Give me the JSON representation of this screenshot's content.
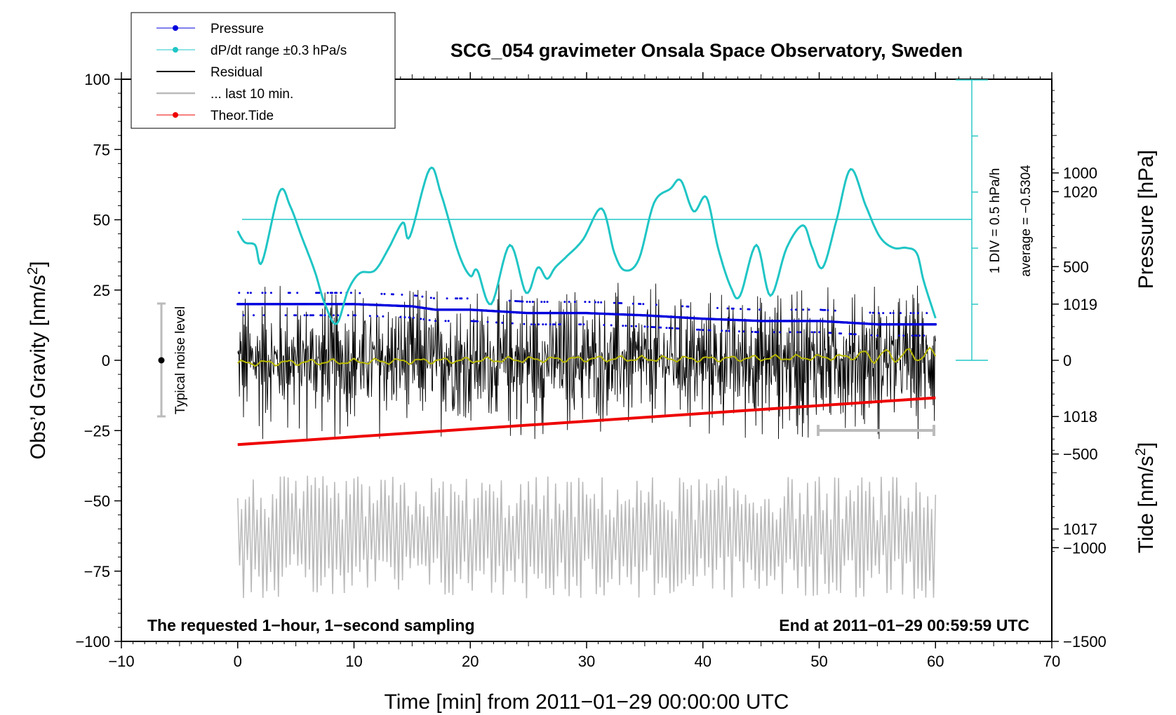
{
  "chart_data": {
    "type": "line",
    "title": "SCG_054 gravimeter Onsala Space Observatory, Sweden",
    "xlabel": "Time [min] from 2011−01−29 00:00:00 UTC",
    "xlim": [
      -10,
      70
    ],
    "x_ticks": [
      "−10",
      "0",
      "10",
      "20",
      "30",
      "40",
      "50",
      "60",
      "70"
    ],
    "y_left": {
      "label": "Obs’d Gravity [nm/s",
      "label_sup": "2",
      "label_end": "]",
      "lim": [
        -100,
        100
      ],
      "ticks": [
        "−100",
        "−75",
        "−50",
        "−25",
        "0",
        "25",
        "50",
        "75",
        "100"
      ]
    },
    "y_right_pressure": {
      "label": "Pressure [hPa]",
      "lim": [
        1016.0,
        1021.0
      ],
      "ticks": [
        "1017",
        "1018",
        "1019",
        "1020"
      ]
    },
    "y_right_tide": {
      "label": "Tide [nm/s",
      "label_sup": "2",
      "label_end": "]",
      "lim": [
        -1500,
        1500
      ],
      "ticks": [
        "−1500",
        "−1000",
        "−500",
        "0",
        "500",
        "1000"
      ]
    },
    "dpdt_axis": {
      "div_label": "1 DIV = 0.5 hPa/h",
      "average_label": "average = −0.5304"
    },
    "legend": [
      {
        "label": "Pressure",
        "color": "#0000dd"
      },
      {
        "label": "dP/dt range ±0.3 hPa/s",
        "color": "#20c5c5"
      },
      {
        "label": "Residual",
        "color": "#000000"
      },
      {
        "label": "... last 10 min.",
        "color": "#bbbbbb"
      },
      {
        "label": "Theor.Tide",
        "color": "#ee0000"
      }
    ],
    "noise_bar": {
      "label": "Typical noise level",
      "x": -7,
      "low": -20,
      "high": 20
    },
    "last10_bar": {
      "x_start": 50,
      "x_end": 60,
      "y": -25
    },
    "footnote_left": "The requested 1−hour, 1−second sampling",
    "footnote_right": "End at 2011−01−29 00:59:59 UTC",
    "series": [
      {
        "name": "Pressure",
        "axis": "pressure",
        "color": "#0000dd",
        "x": [
          0,
          5,
          10,
          15,
          17,
          20,
          25,
          30,
          35,
          40,
          45,
          50,
          55,
          60
        ],
        "values": [
          1019.0,
          1019.0,
          1019.0,
          1018.98,
          1018.95,
          1018.95,
          1018.92,
          1018.92,
          1018.9,
          1018.87,
          1018.85,
          1018.85,
          1018.82,
          1018.82
        ]
      },
      {
        "name": "dP/dt",
        "axis": "left",
        "color": "#20c5c5",
        "x": [
          0,
          0.6,
          1.5,
          2.1,
          3.6,
          4.5,
          5.5,
          6.6,
          7.5,
          8.5,
          9.5,
          10.5,
          11.8,
          13.0,
          14.2,
          14.8,
          16.5,
          17.5,
          19.0,
          20.0,
          20.6,
          21.8,
          23.4,
          24.8,
          25.8,
          26.6,
          27.3,
          28.3,
          29.7,
          31.3,
          32.4,
          33.3,
          34.5,
          35.8,
          37.2,
          38.1,
          39.2,
          40.3,
          41.3,
          42.4,
          43.2,
          44.6,
          45.8,
          47.2,
          48.6,
          49.4,
          50.3,
          51.5,
          52.7,
          54.0,
          55.2,
          56.4,
          57.5,
          58.4,
          59.0,
          60.0
        ],
        "values": [
          46,
          42,
          41,
          35,
          60,
          55,
          44,
          32,
          20,
          13,
          25,
          31,
          32,
          40,
          49,
          44,
          68,
          59,
          38,
          30,
          32,
          20,
          41,
          24,
          33,
          29,
          33,
          37,
          43,
          54,
          38,
          32,
          36,
          56,
          61,
          64,
          53,
          58,
          40,
          26,
          23,
          41,
          23,
          40,
          48,
          40,
          33,
          50,
          68,
          55,
          44,
          40,
          40,
          38,
          28,
          15
        ]
      },
      {
        "name": "Residual",
        "axis": "left",
        "color": "#000000",
        "x_range": [
          0,
          60
        ],
        "envelope": [
          -28,
          28
        ]
      },
      {
        "name": "Residual smoothed",
        "axis": "left",
        "color": "#b8b800",
        "x": [
          0,
          10,
          20,
          30,
          40,
          50,
          55,
          60
        ],
        "values": [
          -1,
          -0.5,
          0,
          0.5,
          0.5,
          1,
          1.5,
          2
        ]
      },
      {
        "name": "Theor.Tide",
        "axis": "tide",
        "color": "#ee0000",
        "x": [
          0,
          60
        ],
        "values": [
          -450,
          -200
        ]
      },
      {
        "name": "Residual last 10 min. (magnified)",
        "axis": "left",
        "color": "#bbbbbb",
        "x_range": [
          0,
          60
        ],
        "center": -63,
        "envelope": [
          -87,
          -37
        ]
      }
    ]
  }
}
